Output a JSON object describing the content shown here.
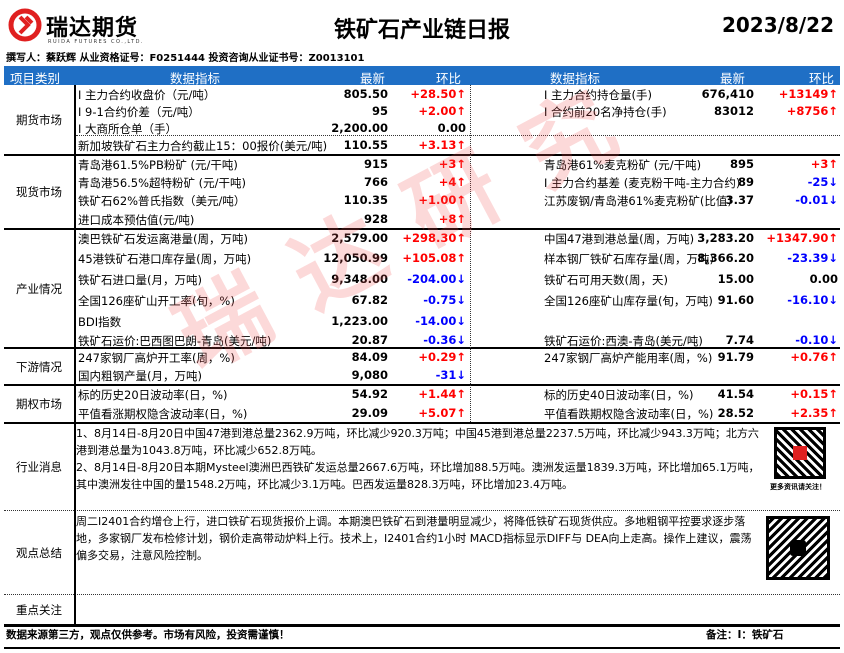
{
  "brand": {
    "name_cn": "瑞达期货",
    "name_en": "RUIDA FUTURES CO.,LTD.",
    "color": "#e02020"
  },
  "title": "铁矿石产业链日报",
  "date": "2023/8/22",
  "authors": "撰写人：蔡跃辉   从业资格证号：F0251444    投资咨询从业证书号：Z0013101",
  "header": {
    "category": "项目类别",
    "indicator": "数据指标",
    "latest": "最新",
    "change": "环比",
    "indicator2": "数据指标",
    "latest2": "最新",
    "change2": "环比",
    "bg": "#1f6fc5"
  },
  "colors": {
    "up": "#ff0000",
    "down": "#0000ff"
  },
  "sections": [
    {
      "category": "期货市场",
      "rows": [
        {
          "l": {
            "name": "I 主力合约收盘价（元/吨）",
            "value": "805.50",
            "change": "+28.50↑",
            "dir": "up"
          },
          "r": {
            "name": "I 主力合约持仓量(手)",
            "value": "676,410",
            "change": "+13149↑",
            "dir": "up"
          }
        },
        {
          "l": {
            "name": "I 9-1合约价差（元/吨）",
            "value": "95",
            "change": "+2.00↑",
            "dir": "up"
          },
          "r": {
            "name": "I 合约前20名净持仓(手)",
            "value": "83012",
            "change": "+8756↑",
            "dir": "up"
          }
        },
        {
          "l": {
            "name": "I 大商所仓单（手）",
            "value": "2,200.00",
            "change": "0.00",
            "dir": "flat"
          },
          "r": null
        },
        {
          "l": {
            "name": "新加坡铁矿石主力合约截止15：00报价(美元/吨)",
            "value": "110.55",
            "change": "+3.13↑",
            "dir": "up"
          },
          "r": null
        }
      ]
    },
    {
      "category": "现货市场",
      "rows": [
        {
          "l": {
            "name": "青岛港61.5%PB粉矿 (元/干吨)",
            "value": "915",
            "change": "+3↑",
            "dir": "up"
          },
          "r": {
            "name": "青岛港61%麦克粉矿 (元/干吨)",
            "value": "895",
            "change": "+3↑",
            "dir": "up"
          }
        },
        {
          "l": {
            "name": "青岛港56.5%超特粉矿 (元/干吨)",
            "value": "766",
            "change": "+4↑",
            "dir": "up"
          },
          "r": {
            "name": "I 主力合约基差 (麦克粉干吨-主力合约)",
            "value": "89",
            "change": "-25↓",
            "dir": "down"
          }
        },
        {
          "l": {
            "name": "铁矿石62%普氏指数（美元/吨）",
            "value": "110.35",
            "change": "+1.00↑",
            "dir": "up"
          },
          "r": {
            "name": "江苏废钢/青岛港61%麦克粉矿(比值)",
            "value": "3.37",
            "change": "-0.01↓",
            "dir": "down"
          }
        },
        {
          "l": {
            "name": "进口成本预估值(元/吨)",
            "value": "928",
            "change": "+8↑",
            "dir": "up"
          },
          "r": null
        }
      ]
    },
    {
      "category": "产业情况",
      "rows": [
        {
          "l": {
            "name": "澳巴铁矿石发运离港量(周，万吨)",
            "value": "2,579.00",
            "change": "+298.30↑",
            "dir": "up"
          },
          "r": {
            "name": "中国47港到港总量(周，万吨)",
            "value": "3,283.20",
            "change": "+1347.90↑",
            "dir": "up"
          }
        },
        {
          "l": {
            "name": "45港铁矿石港口库存量(周，万吨)",
            "value": "12,050.99",
            "change": "+105.08↑",
            "dir": "up"
          },
          "r": {
            "name": "样本钢厂铁矿石库存量(周，万吨)",
            "value": "8,366.20",
            "change": "-23.39↓",
            "dir": "down"
          }
        },
        {
          "l": {
            "name": "铁矿石进口量(月，万吨)",
            "value": "9,348.00",
            "change": "-204.00↓",
            "dir": "down"
          },
          "r": {
            "name": "铁矿石可用天数(周，天)",
            "value": "15.00",
            "change": "0.00",
            "dir": "flat"
          }
        },
        {
          "l": {
            "name": "全国126座矿山开工率(旬，%)",
            "value": "67.82",
            "change": "-0.75↓",
            "dir": "down"
          },
          "r": {
            "name": "全国126座矿山库存量(旬，万吨)",
            "value": "91.60",
            "change": "-16.10↓",
            "dir": "down"
          }
        },
        {
          "l": {
            "name": "BDI指数",
            "value": "1,223.00",
            "change": "-14.00↓",
            "dir": "down"
          },
          "r": null
        },
        {
          "l": {
            "name": "铁矿石运价:巴西图巴朗-青岛(美元/吨)",
            "value": "20.87",
            "change": "-0.36↓",
            "dir": "down"
          },
          "r": {
            "name": "铁矿石运价:西澳-青岛(美元/吨)",
            "value": "7.74",
            "change": "-0.10↓",
            "dir": "down"
          }
        }
      ]
    },
    {
      "category": "下游情况",
      "rows": [
        {
          "l": {
            "name": "247家钢厂高炉开工率(周，%)",
            "value": "84.09",
            "change": "+0.29↑",
            "dir": "up"
          },
          "r": {
            "name": "247家钢厂高炉产能用率(周，%)",
            "value": "91.79",
            "change": "+0.76↑",
            "dir": "up"
          }
        },
        {
          "l": {
            "name": "国内粗钢产量(月，万吨)",
            "value": "9,080",
            "change": "-31↓",
            "dir": "down"
          },
          "r": null
        }
      ]
    },
    {
      "category": "期权市场",
      "rows": [
        {
          "l": {
            "name": "标的历史20日波动率(日，%)",
            "value": "54.92",
            "change": "+1.44↑",
            "dir": "up"
          },
          "r": {
            "name": "标的历史40日波动率(日，%)",
            "value": "41.54",
            "change": "+0.15↑",
            "dir": "up"
          }
        },
        {
          "l": {
            "name": "平值看涨期权隐含波动率(日，%)",
            "value": "29.09",
            "change": "+5.07↑",
            "dir": "up"
          },
          "r": {
            "name": "平值看跌期权隐含波动率(日，%)",
            "value": "28.52",
            "change": "+2.35↑",
            "dir": "up"
          }
        }
      ]
    }
  ],
  "news": {
    "category": "行业消息",
    "text1": "1、8月14日-8月20日中国47港到港总量2362.9万吨，环比减少920.3万吨；中国45港到港总量2237.5万吨，环比减少943.3万吨；北方六港到港总量为1043.8万吨，环比减少652.8万吨。",
    "text2": "2、8月14日-8月20日本期Mysteel澳洲巴西铁矿发运总量2667.6万吨，环比增加88.5万吨。澳洲发运量1839.3万吨，环比增加65.1万吨，其中澳洲发往中国的量1548.2万吨，环比减少3.1万吨。巴西发运量828.3万吨，环比增加23.4万吨。",
    "qr_caption": "更多资讯请关注！"
  },
  "view": {
    "category": "观点总结",
    "text": "周二I2401合约增仓上行，进口铁矿石现货报价上调。本期澳巴铁矿石到港量明显减少，将降低铁矿石现货供应。多地粗钢平控要求逐步落地，多家钢厂发布检修计划，钢价走高带动炉料上行。技术上，I2401合约1小时 MACD指标显示DIFF与 DEA向上走高。操作上建议，震荡偏多交易，注意风险控制。"
  },
  "focus": {
    "category": "重点关注",
    "text": ""
  },
  "footer": {
    "disclaimer": "数据来源第三方，观点仅供参考。市场有风险，投资需谨慎！",
    "note": "备注：I：铁矿石"
  },
  "watermark": "瑞达研究"
}
